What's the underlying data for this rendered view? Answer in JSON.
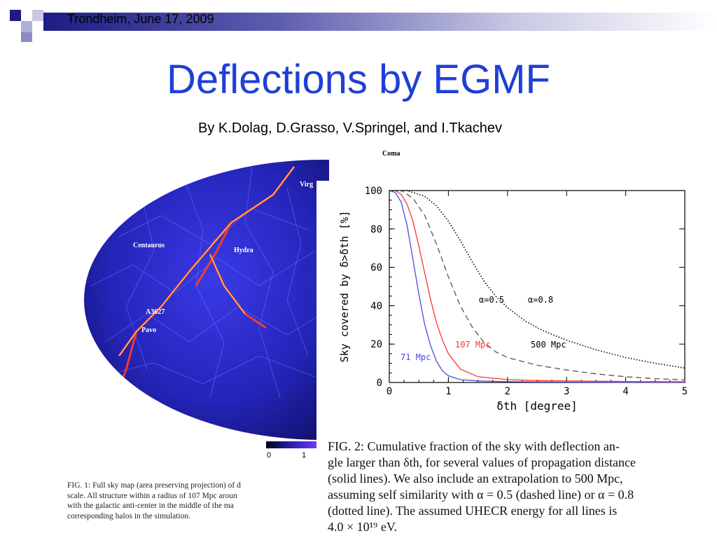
{
  "header": {
    "text": "Trondheim, June 17, 2009"
  },
  "title": "Deflections  by EGMF",
  "subtitle": "By K.Dolag, D.Grasso, V.Springel, and I.Tkachev",
  "skymap": {
    "labels": {
      "coma": "Coma",
      "virgo": "Virg",
      "centaurus": "Centaurus",
      "hydra": "Hydra",
      "a3627": "A3627",
      "pavo": "Pavo"
    },
    "colorbar_ticks": [
      "0",
      "1"
    ]
  },
  "fig1_caption": [
    "FIG. 1: Full sky map (area preserving projection) of d",
    "scale. All structure within a radius of 107 Mpc aroun",
    "with the galactic anti-center in the middle of the ma",
    "corresponding halos in the simulation."
  ],
  "chart_data": {
    "type": "line",
    "xlabel": "δth [degree]",
    "ylabel": "Sky covered by δ>δth [%]",
    "xlim": [
      0,
      5
    ],
    "ylim": [
      0,
      100
    ],
    "xticks": [
      "0",
      "1",
      "2",
      "3",
      "4",
      "5"
    ],
    "yticks": [
      "0",
      "20",
      "40",
      "60",
      "80",
      "100"
    ],
    "annotations": [
      "α=0.5",
      "α=0.8"
    ],
    "series": [
      {
        "name": "71 Mpc",
        "color": "#4a4ae0",
        "style": "solid",
        "x": [
          0,
          0.1,
          0.2,
          0.3,
          0.4,
          0.5,
          0.6,
          0.7,
          0.8,
          0.9,
          1.0,
          1.2,
          1.5,
          2.0,
          3.0,
          4.0,
          5.0
        ],
        "y": [
          100,
          99,
          94,
          82,
          64,
          46,
          30,
          19,
          11,
          6,
          3.5,
          1.5,
          0.8,
          0.4,
          0.2,
          0.1,
          0.1
        ]
      },
      {
        "name": "107 Mpc",
        "color": "#ff3333",
        "style": "solid",
        "x": [
          0,
          0.1,
          0.2,
          0.3,
          0.4,
          0.5,
          0.6,
          0.7,
          0.8,
          0.9,
          1.0,
          1.2,
          1.5,
          2.0,
          2.5,
          3.0,
          4.0,
          5.0
        ],
        "y": [
          100,
          100,
          98,
          93,
          84,
          71,
          57,
          43,
          31,
          22,
          15,
          7,
          3,
          1.5,
          1,
          0.8,
          0.5,
          0.4
        ]
      },
      {
        "name": "500 Mpc",
        "color": "#555555",
        "style": "dashed",
        "x": [
          0,
          0.2,
          0.4,
          0.6,
          0.8,
          1.0,
          1.2,
          1.4,
          1.6,
          1.8,
          2.0,
          2.5,
          3.0,
          3.5,
          4.0,
          4.5,
          5.0
        ],
        "y": [
          100,
          100,
          96,
          87,
          72,
          55,
          40,
          29,
          21,
          16,
          13,
          9,
          6.5,
          4.5,
          3,
          2,
          1.3
        ]
      },
      {
        "name": "",
        "color": "#000000",
        "style": "dotted",
        "x": [
          0,
          0.3,
          0.6,
          0.8,
          1.0,
          1.2,
          1.4,
          1.6,
          1.8,
          2.0,
          2.3,
          2.6,
          3.0,
          3.5,
          4.0,
          4.5,
          5.0
        ],
        "y": [
          100,
          100,
          97,
          92,
          84,
          74,
          63,
          53,
          45,
          39,
          32,
          27,
          22,
          17,
          13,
          10,
          7.5
        ]
      }
    ]
  },
  "fig2_caption": [
    "FIG. 2:  Cumulative fraction of the sky with deflection an-",
    "gle larger than δth, for several values of propagation distance",
    "(solid lines).  We also include an extrapolation to 500  Mpc,",
    "assuming self similarity with α = 0.5 (dashed line) or α = 0.8",
    "(dotted line).  The assumed UHECR energy for all lines is",
    "4.0 × 10¹⁹ eV."
  ]
}
